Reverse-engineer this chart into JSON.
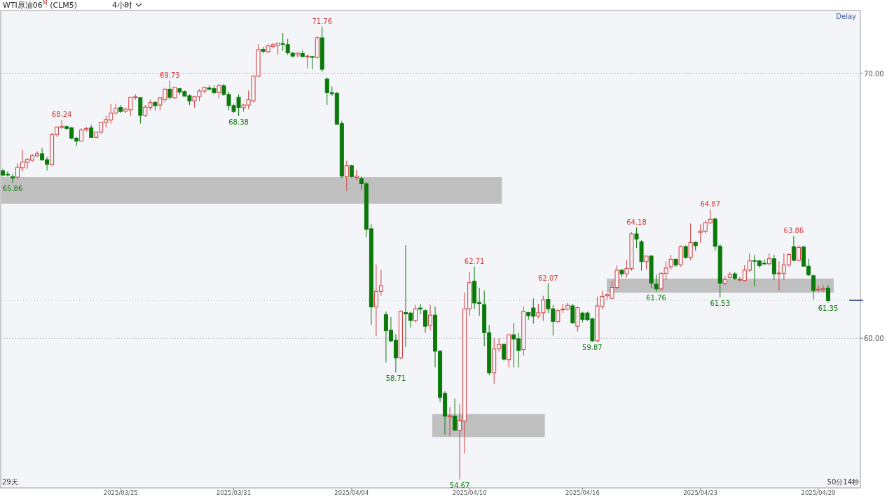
{
  "chart_data": {
    "type": "candlestick",
    "title": "WTI原油06$^{M}$ (CLM5)",
    "subtitle": "4小时",
    "categories": [
      null,
      null,
      null,
      null,
      null,
      null,
      null,
      null,
      null,
      null,
      null,
      null,
      null,
      null,
      null,
      null,
      null,
      null,
      null,
      null,
      null,
      null,
      null,
      null,
      "2025/03/25",
      null,
      null,
      null,
      null,
      null,
      null,
      null,
      null,
      null,
      null,
      null,
      null,
      null,
      null,
      null,
      null,
      null,
      null,
      null,
      null,
      null,
      null,
      "2025/03/31",
      null,
      null,
      null,
      null,
      null,
      null,
      null,
      null,
      null,
      null,
      null,
      null,
      null,
      null,
      null,
      null,
      null,
      null,
      null,
      null,
      null,
      null,
      null,
      "2025/04/04",
      null,
      null,
      null,
      null,
      null,
      null,
      null,
      null,
      null,
      null,
      null,
      null,
      null,
      null,
      null,
      null,
      null,
      null,
      null,
      null,
      null,
      null,
      null,
      "2025/04/10",
      null,
      null,
      null,
      null,
      null,
      null,
      null,
      null,
      null,
      null,
      null,
      null,
      null,
      null,
      null,
      null,
      null,
      null,
      null,
      null,
      null,
      null,
      "2025/04/16",
      null,
      null,
      null,
      null,
      null,
      null,
      null,
      null,
      null,
      null,
      null,
      null,
      null,
      null,
      null,
      null,
      null,
      null,
      null,
      null,
      null,
      null,
      null,
      "2025/04/23",
      null,
      null,
      null,
      null,
      null,
      null,
      null,
      null,
      null,
      null,
      null,
      null,
      null,
      null,
      null,
      null,
      null,
      null,
      null,
      null,
      null,
      null,
      null,
      "2025/04/29",
      null,
      null
    ],
    "ohlc": [
      [
        66.32,
        66.4,
        66.1,
        66.16
      ],
      [
        66.19,
        66.31,
        66.1,
        66.16
      ],
      [
        66.1,
        66.2,
        65.86,
        66.05
      ],
      [
        66.08,
        66.6,
        66.0,
        66.45
      ],
      [
        66.43,
        67.12,
        66.3,
        66.65
      ],
      [
        66.64,
        66.8,
        66.4,
        66.75
      ],
      [
        66.72,
        66.95,
        66.65,
        66.89
      ],
      [
        66.88,
        67.05,
        66.85,
        66.96
      ],
      [
        66.96,
        67.18,
        66.7,
        66.73
      ],
      [
        66.74,
        66.85,
        66.33,
        66.56
      ],
      [
        66.55,
        67.75,
        66.5,
        67.68
      ],
      [
        67.68,
        68.0,
        67.6,
        67.97
      ],
      [
        67.96,
        68.24,
        67.9,
        67.99
      ],
      [
        67.99,
        68.02,
        67.85,
        67.92
      ],
      [
        67.94,
        67.98,
        67.5,
        67.55
      ],
      [
        67.55,
        67.6,
        67.25,
        67.44
      ],
      [
        67.44,
        67.92,
        67.42,
        67.86
      ],
      [
        67.86,
        67.98,
        67.8,
        67.92
      ],
      [
        67.94,
        68.05,
        67.56,
        67.58
      ],
      [
        67.58,
        67.8,
        67.55,
        67.78
      ],
      [
        67.78,
        68.16,
        67.7,
        68.15
      ],
      [
        68.15,
        68.4,
        67.95,
        68.25
      ],
      [
        68.24,
        68.84,
        68.1,
        68.5
      ],
      [
        68.5,
        68.85,
        68.45,
        68.68
      ],
      [
        68.71,
        68.8,
        68.5,
        68.56
      ],
      [
        68.57,
        68.7,
        68.5,
        68.65
      ],
      [
        68.62,
        69.1,
        68.39,
        69.09
      ],
      [
        69.08,
        69.2,
        69.0,
        69.12
      ],
      [
        69.08,
        69.1,
        68.1,
        68.41
      ],
      [
        68.41,
        68.8,
        68.35,
        68.72
      ],
      [
        68.71,
        69.0,
        68.6,
        68.89
      ],
      [
        68.9,
        68.95,
        68.6,
        68.78
      ],
      [
        68.8,
        69.1,
        68.6,
        69.07
      ],
      [
        69.0,
        69.45,
        68.9,
        69.4
      ],
      [
        69.4,
        69.73,
        69.0,
        69.09
      ],
      [
        69.07,
        69.5,
        69.05,
        69.47
      ],
      [
        69.42,
        69.45,
        69.2,
        69.29
      ],
      [
        69.31,
        69.35,
        69.12,
        69.14
      ],
      [
        69.15,
        69.2,
        68.8,
        68.96
      ],
      [
        68.96,
        69.15,
        68.7,
        69.12
      ],
      [
        69.12,
        69.4,
        68.95,
        69.33
      ],
      [
        69.33,
        69.5,
        69.25,
        69.47
      ],
      [
        69.45,
        69.55,
        69.35,
        69.4
      ],
      [
        69.42,
        69.55,
        69.2,
        69.27
      ],
      [
        69.27,
        69.6,
        69.05,
        69.53
      ],
      [
        69.53,
        69.6,
        69.15,
        69.2
      ],
      [
        69.2,
        69.3,
        68.6,
        68.78
      ],
      [
        68.78,
        68.85,
        68.5,
        68.56
      ],
      [
        69.09,
        69.2,
        68.38,
        68.71
      ],
      [
        68.7,
        68.85,
        68.55,
        68.8
      ],
      [
        68.8,
        69.35,
        68.65,
        69.0
      ],
      [
        68.96,
        69.92,
        68.9,
        69.89
      ],
      [
        69.89,
        71.1,
        69.85,
        70.89
      ],
      [
        70.9,
        71.0,
        70.75,
        70.83
      ],
      [
        70.81,
        71.1,
        70.78,
        71.03
      ],
      [
        71.01,
        71.15,
        70.95,
        71.08
      ],
      [
        71.05,
        71.15,
        70.7,
        71.14
      ],
      [
        71.12,
        71.52,
        70.85,
        71.1
      ],
      [
        71.08,
        71.3,
        70.7,
        70.77
      ],
      [
        70.76,
        70.8,
        70.6,
        70.65
      ],
      [
        70.7,
        70.8,
        70.6,
        70.76
      ],
      [
        70.75,
        70.85,
        70.6,
        70.63
      ],
      [
        70.63,
        70.7,
        70.19,
        70.65
      ],
      [
        70.63,
        70.65,
        70.15,
        70.6
      ],
      [
        70.6,
        71.4,
        70.55,
        71.34
      ],
      [
        71.34,
        71.76,
        70.05,
        70.15
      ],
      [
        69.78,
        69.85,
        68.81,
        69.27
      ],
      [
        69.27,
        69.5,
        69.15,
        69.23
      ],
      [
        69.24,
        69.3,
        68.05,
        68.08
      ],
      [
        68.1,
        68.2,
        66.05,
        66.12
      ],
      [
        66.1,
        66.7,
        65.56,
        66.51
      ],
      [
        66.51,
        66.55,
        66.05,
        66.1
      ],
      [
        66.07,
        66.35,
        65.95,
        66.12
      ],
      [
        66.03,
        66.1,
        65.6,
        65.83
      ],
      [
        65.83,
        65.9,
        63.81,
        64.11
      ],
      [
        64.13,
        64.3,
        60.5,
        61.18
      ],
      [
        61.18,
        62.79,
        60.08,
        61.77
      ],
      [
        61.77,
        62.57,
        61.6,
        61.98
      ],
      [
        60.89,
        61.0,
        59.08,
        60.28
      ],
      [
        60.3,
        60.8,
        59.85,
        59.9
      ],
      [
        59.92,
        60.15,
        58.71,
        59.26
      ],
      [
        59.26,
        61.05,
        59.2,
        61.02
      ],
      [
        60.97,
        63.51,
        59.66,
        60.92
      ],
      [
        60.95,
        61.0,
        60.4,
        60.67
      ],
      [
        60.67,
        61.25,
        60.6,
        61.11
      ],
      [
        61.14,
        61.3,
        60.9,
        61.1
      ],
      [
        61.04,
        61.1,
        60.2,
        60.45
      ],
      [
        60.48,
        61.25,
        60.3,
        60.87
      ],
      [
        60.87,
        61.2,
        58.91,
        59.51
      ],
      [
        59.51,
        59.55,
        57.6,
        57.76
      ],
      [
        57.92,
        58.0,
        56.35,
        57.06
      ],
      [
        57.03,
        57.4,
        56.3,
        57.07
      ],
      [
        57.06,
        57.72,
        56.5,
        56.53
      ],
      [
        56.53,
        57.5,
        54.67,
        56.9
      ],
      [
        56.88,
        61.73,
        55.65,
        61.11
      ],
      [
        61.11,
        62.5,
        60.85,
        62.1
      ],
      [
        62.15,
        62.71,
        61.1,
        61.33
      ],
      [
        61.35,
        61.9,
        60.85,
        61.31
      ],
      [
        61.27,
        61.8,
        59.7,
        60.21
      ],
      [
        60.21,
        60.5,
        58.6,
        58.69
      ],
      [
        58.69,
        60.0,
        58.29,
        59.6
      ],
      [
        59.6,
        60.0,
        59.5,
        59.76
      ],
      [
        59.77,
        59.8,
        59.15,
        59.21
      ],
      [
        59.19,
        60.15,
        58.9,
        60.13
      ],
      [
        60.13,
        60.58,
        58.9,
        59.97
      ],
      [
        59.98,
        60.2,
        58.9,
        59.54
      ],
      [
        59.57,
        61.2,
        59.35,
        61.02
      ],
      [
        60.97,
        61.0,
        60.7,
        60.85
      ],
      [
        61.14,
        61.5,
        60.55,
        60.83
      ],
      [
        60.84,
        61.3,
        60.75,
        60.96
      ],
      [
        60.96,
        61.6,
        60.65,
        61.45
      ],
      [
        61.47,
        62.07,
        60.95,
        61.11
      ],
      [
        61.11,
        61.25,
        60.1,
        60.63
      ],
      [
        60.63,
        61.1,
        60.55,
        61.04
      ],
      [
        61.07,
        61.3,
        60.95,
        61.1
      ],
      [
        61.1,
        61.34,
        61.05,
        61.24
      ],
      [
        61.22,
        61.3,
        60.55,
        60.58
      ],
      [
        60.45,
        61.2,
        60.25,
        61.15
      ],
      [
        60.95,
        61.0,
        60.6,
        60.71
      ],
      [
        60.95,
        61.0,
        60.65,
        60.7
      ],
      [
        60.74,
        60.75,
        59.87,
        59.9
      ],
      [
        59.9,
        61.57,
        59.85,
        61.22
      ],
      [
        61.2,
        61.8,
        61.1,
        61.58
      ],
      [
        61.6,
        61.7,
        61.45,
        61.65
      ],
      [
        61.51,
        62.15,
        61.45,
        61.92
      ],
      [
        61.92,
        62.75,
        61.85,
        62.57
      ],
      [
        62.57,
        62.6,
        62.3,
        62.43
      ],
      [
        62.43,
        62.95,
        62.3,
        62.63
      ],
      [
        62.63,
        64.0,
        62.55,
        63.94
      ],
      [
        63.94,
        64.18,
        63.4,
        63.74
      ],
      [
        63.64,
        63.7,
        62.55,
        62.89
      ],
      [
        62.89,
        63.1,
        62.6,
        63.1
      ],
      [
        63.1,
        63.15,
        61.9,
        62.08
      ],
      [
        62.04,
        62.4,
        61.76,
        61.86
      ],
      [
        61.86,
        62.5,
        61.8,
        62.45
      ],
      [
        62.45,
        62.9,
        62.2,
        62.65
      ],
      [
        62.7,
        63.15,
        62.6,
        62.98
      ],
      [
        62.98,
        63.0,
        62.7,
        62.76
      ],
      [
        62.77,
        63.5,
        62.7,
        63.46
      ],
      [
        63.46,
        63.5,
        63.0,
        63.05
      ],
      [
        63.05,
        64.33,
        62.95,
        63.61
      ],
      [
        63.62,
        63.65,
        63.3,
        63.49
      ],
      [
        63.98,
        64.3,
        63.6,
        64.04
      ],
      [
        64.04,
        64.45,
        63.95,
        64.36
      ],
      [
        64.36,
        64.87,
        64.3,
        64.49
      ],
      [
        64.5,
        64.55,
        63.3,
        63.47
      ],
      [
        63.47,
        63.55,
        61.53,
        62.08
      ],
      [
        62.08,
        62.35,
        62.0,
        62.22
      ],
      [
        62.3,
        62.5,
        62.25,
        62.41
      ],
      [
        62.43,
        62.5,
        62.2,
        62.26
      ],
      [
        62.2,
        62.3,
        62.15,
        62.22
      ],
      [
        62.18,
        62.75,
        62.15,
        62.57
      ],
      [
        62.57,
        63.2,
        62.5,
        62.92
      ],
      [
        62.93,
        63.15,
        61.95,
        62.91
      ],
      [
        62.92,
        62.95,
        62.65,
        62.74
      ],
      [
        62.83,
        62.98,
        62.78,
        62.83
      ],
      [
        62.81,
        63.2,
        62.75,
        63.0
      ],
      [
        63.0,
        63.15,
        62.2,
        62.43
      ],
      [
        62.44,
        62.9,
        61.8,
        62.46
      ],
      [
        62.45,
        63.2,
        62.2,
        62.77
      ],
      [
        62.77,
        63.2,
        62.7,
        63.16
      ],
      [
        63.45,
        63.86,
        62.9,
        62.94
      ],
      [
        62.94,
        63.5,
        62.9,
        63.43
      ],
      [
        63.44,
        63.5,
        62.7,
        62.72
      ],
      [
        62.72,
        63.0,
        62.35,
        62.39
      ],
      [
        62.36,
        62.4,
        61.46,
        61.8
      ],
      [
        61.82,
        62.0,
        61.75,
        61.85
      ],
      [
        61.83,
        62.0,
        61.75,
        61.87
      ],
      [
        61.89,
        62.0,
        61.35,
        61.42
      ]
    ],
    "colors": [
      "#0b7a0b",
      "#0b7a0b",
      "#0b7a0b",
      "#d03c3c",
      "#d03c3c",
      "#d03c3c",
      "#d03c3c",
      "#d03c3c",
      "#0b7a0b",
      "#0b7a0b",
      "#d03c3c",
      "#d03c3c",
      "#d03c3c",
      "#0b7a0b",
      "#0b7a0b",
      "#0b7a0b",
      "#d03c3c",
      "#d03c3c",
      "#0b7a0b",
      "#d03c3c",
      "#d03c3c",
      "#d03c3c",
      "#d03c3c",
      "#d03c3c",
      "#0b7a0b",
      "#d03c3c",
      "#d03c3c",
      "#d03c3c",
      "#0b7a0b",
      "#d03c3c",
      "#d03c3c",
      "#0b7a0b",
      "#d03c3c",
      "#d03c3c",
      "#0b7a0b",
      "#d03c3c",
      "#0b7a0b",
      "#0b7a0b",
      "#0b7a0b",
      "#d03c3c",
      "#d03c3c",
      "#d03c3c",
      "#0b7a0b",
      "#0b7a0b",
      "#d03c3c",
      "#0b7a0b",
      "#0b7a0b",
      "#0b7a0b",
      "#0b7a0b",
      "#d03c3c",
      "#d03c3c",
      "#d03c3c",
      "#d03c3c",
      "#0b7a0b",
      "#d03c3c",
      "#d03c3c",
      "#d03c3c",
      "#0b7a0b",
      "#0b7a0b",
      "#0b7a0b",
      "#d03c3c",
      "#0b7a0b",
      "#d03c3c",
      "#0b7a0b",
      "#d03c3c",
      "#0b7a0b",
      "#0b7a0b",
      "#0b7a0b",
      "#0b7a0b",
      "#0b7a0b",
      "#d03c3c",
      "#0b7a0b",
      "#d03c3c",
      "#0b7a0b",
      "#0b7a0b",
      "#0b7a0b",
      "#d03c3c",
      "#d03c3c",
      "#0b7a0b",
      "#0b7a0b",
      "#0b7a0b",
      "#d03c3c",
      "#0b7a0b",
      "#0b7a0b",
      "#d03c3c",
      "#0b7a0b",
      "#0b7a0b",
      "#d03c3c",
      "#0b7a0b",
      "#0b7a0b",
      "#0b7a0b",
      "#d03c3c",
      "#0b7a0b",
      "#d03c3c",
      "#d03c3c",
      "#d03c3c",
      "#0b7a0b",
      "#0b7a0b",
      "#0b7a0b",
      "#0b7a0b",
      "#d03c3c",
      "#d03c3c",
      "#0b7a0b",
      "#d03c3c",
      "#0b7a0b",
      "#0b7a0b",
      "#d03c3c",
      "#0b7a0b",
      "#0b7a0b",
      "#d03c3c",
      "#d03c3c",
      "#0b7a0b",
      "#0b7a0b",
      "#d03c3c",
      "#d03c3c",
      "#d03c3c",
      "#0b7a0b",
      "#d03c3c",
      "#0b7a0b",
      "#0b7a0b",
      "#0b7a0b",
      "#d03c3c",
      "#d03c3c",
      "#d03c3c",
      "#d03c3c",
      "#d03c3c",
      "#0b7a0b",
      "#d03c3c",
      "#d03c3c",
      "#0b7a0b",
      "#0b7a0b",
      "#d03c3c",
      "#0b7a0b",
      "#0b7a0b",
      "#d03c3c",
      "#d03c3c",
      "#d03c3c",
      "#0b7a0b",
      "#d03c3c",
      "#0b7a0b",
      "#d03c3c",
      "#0b7a0b",
      "#d03c3c",
      "#d03c3c",
      "#d03c3c",
      "#0b7a0b",
      "#0b7a0b",
      "#d03c3c",
      "#d03c3c",
      "#0b7a0b",
      "#d03c3c",
      "#d03c3c",
      "#d03c3c",
      "#0b7a0b",
      "#0b7a0b",
      "#0b7a0b",
      "#d03c3c",
      "#0b7a0b",
      "#d03c3c",
      "#d03c3c",
      "#d03c3c",
      "#0b7a0b",
      "#d03c3c",
      "#0b7a0b",
      "#0b7a0b",
      "#0b7a0b",
      "#d03c3c",
      "#d03c3c",
      "#0b7a0b"
    ],
    "ylim": [
      54.35,
      72.37
    ],
    "yticks": [
      {
        "value": 60,
        "label": "60.00"
      },
      {
        "value": 70,
        "label": "70.00"
      }
    ],
    "grid": "y",
    "bands": [
      {
        "axis": "y",
        "from": 65.08,
        "to": 66.08,
        "color": "#c0c0c0"
      },
      {
        "axis": "y",
        "from": 56.27,
        "to": 57.14,
        "color": "#c0c0c0"
      },
      {
        "axis": "y",
        "from": 61.72,
        "to": 62.25,
        "color": "#c0c0c0"
      }
    ],
    "ref_lines": [
      {
        "axis": "y",
        "value": 61.43,
        "color": "#1f3a6e"
      }
    ],
    "annotations": [
      {
        "text": "68.24",
        "y": 68.24
      },
      {
        "text": "69.73",
        "y": 69.73
      },
      {
        "text": "71.76",
        "y": 71.76
      },
      {
        "text": "65.86",
        "y": 65.86
      },
      {
        "text": "68.38",
        "y": 68.38
      },
      {
        "text": "58.71",
        "y": 58.71
      },
      {
        "text": "54.67",
        "y": 54.67
      },
      {
        "text": "62.71",
        "y": 62.71
      },
      {
        "text": "62.07",
        "y": 62.07
      },
      {
        "text": "59.87",
        "y": 59.87
      },
      {
        "text": "64.18",
        "y": 64.18
      },
      {
        "text": "61.76",
        "y": 61.76
      },
      {
        "text": "64.87",
        "y": 64.87
      },
      {
        "text": "61.53",
        "y": 61.53
      },
      {
        "text": "63.86",
        "y": 63.86
      },
      {
        "text": "61.35",
        "y": 61.35
      },
      "Delay",
      "29天",
      "50分14秒"
    ]
  }
}
